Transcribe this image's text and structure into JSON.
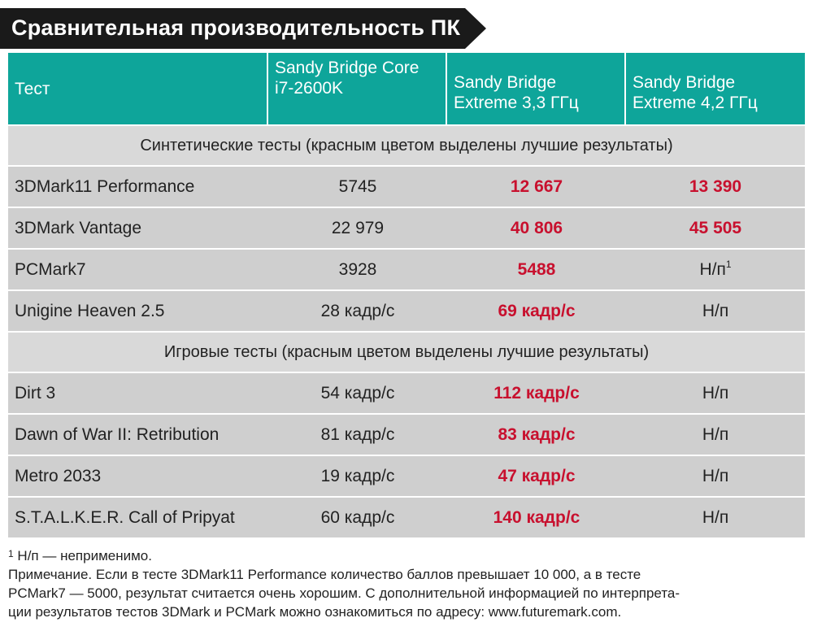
{
  "title": "Сравнительная производительность ПК",
  "colors": {
    "title_bg": "#1a1a1a",
    "header_bg": "#0ea59a",
    "row_bg": "#cfcfcf",
    "section_bg": "#d9d9d9",
    "best": "#c8102e"
  },
  "header": {
    "test": "Тест",
    "col1": [
      "Sandy Bridge Core",
      "i7-2600K"
    ],
    "col2": [
      "Sandy Bridge",
      "Extreme 3,3 ГГц"
    ],
    "col3": [
      "Sandy Bridge",
      "Extreme 4,2 ГГц"
    ]
  },
  "sections": [
    {
      "title": "Синтетические тесты (красным цветом выделены лучшие результаты)",
      "rows": [
        {
          "name": "3DMark11 Performance",
          "v1": "5745",
          "v2": "12 667",
          "v3": "13 390"
        },
        {
          "name": "3DMark Vantage",
          "v1": "22 979",
          "v2": "40 806",
          "v3": "45 505"
        },
        {
          "name": "PCMark7",
          "v1": "3928",
          "v2": "5488",
          "v3": "Н/п",
          "v3_sup": "1"
        },
        {
          "name": "Unigine Heaven 2.5",
          "v1": "28 кадр/с",
          "v2": "69 кадр/с",
          "v3": "Н/п"
        }
      ]
    },
    {
      "title": "Игровые тесты (красным цветом выделены лучшие результаты)",
      "rows": [
        {
          "name": "Dirt 3",
          "v1": "54 кадр/с",
          "v2": "112 кадр/с",
          "v3": "Н/п"
        },
        {
          "name": "Dawn of War II: Retribution",
          "v1": "81 кадр/с",
          "v2": "83 кадр/с",
          "v3": "Н/п"
        },
        {
          "name": "Metro 2033",
          "v1": "19 кадр/с",
          "v2": "47 кадр/с",
          "v3": "Н/п"
        },
        {
          "name": "S.T.A.L.K.E.R. Call of Pripyat",
          "v1": "60 кадр/с",
          "v2": "140 кадр/с",
          "v3": "Н/п"
        }
      ]
    }
  ],
  "footnotes": {
    "note1_sup": "1",
    "note1": "Н/п — неприменимо.",
    "note2_lines": [
      "Примечание. Если в тесте 3DMark11 Performance количество баллов превышает 10 000, а в тесте",
      "PCMark7 — 5000, результат считается очень хорошим. С дополнительной информацией по интерпрета-",
      "ции результатов тестов 3DMark и PCMark можно ознакомиться по адресу: www.futuremark.com."
    ]
  }
}
